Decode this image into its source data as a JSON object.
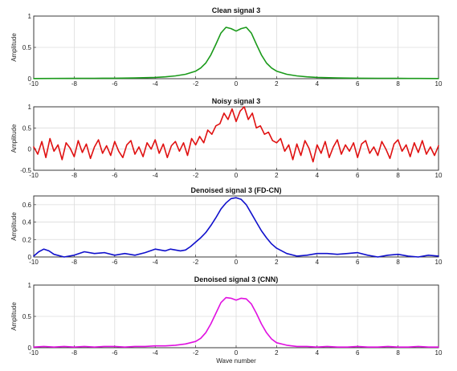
{
  "chart_data": [
    {
      "type": "line",
      "title": "Clean signal 3",
      "xlabel": "",
      "ylabel": "Amplitude",
      "xlim": [
        -10,
        10
      ],
      "ylim": [
        0,
        1
      ],
      "xticks": [
        "-10",
        "-8",
        "-6",
        "-4",
        "-2",
        "0",
        "2",
        "4",
        "6",
        "8",
        "10"
      ],
      "yticks": [
        "0",
        "0.5",
        "1"
      ],
      "grid": true,
      "color": "#1a9a1a",
      "series": [
        {
          "x": [
            -10,
            -9,
            -8,
            -7,
            -6,
            -5,
            -4,
            -3.5,
            -3,
            -2.5,
            -2,
            -1.75,
            -1.5,
            -1.25,
            -1,
            -0.75,
            -0.5,
            -0.25,
            0,
            0.25,
            0.5,
            0.75,
            1,
            1.25,
            1.5,
            1.75,
            2,
            2.5,
            3,
            3.5,
            4,
            5,
            6,
            7,
            8,
            9,
            10
          ],
          "y": [
            0.003,
            0.004,
            0.005,
            0.006,
            0.008,
            0.012,
            0.02,
            0.03,
            0.045,
            0.07,
            0.12,
            0.17,
            0.25,
            0.38,
            0.55,
            0.73,
            0.82,
            0.8,
            0.76,
            0.8,
            0.82,
            0.73,
            0.55,
            0.38,
            0.25,
            0.17,
            0.12,
            0.07,
            0.045,
            0.03,
            0.02,
            0.012,
            0.008,
            0.006,
            0.005,
            0.004,
            0.003
          ]
        }
      ]
    },
    {
      "type": "line",
      "title": "Noisy signal 3",
      "xlabel": "",
      "ylabel": "Amplitude",
      "xlim": [
        -10,
        10
      ],
      "ylim": [
        -0.5,
        1
      ],
      "xticks": [
        "-10",
        "-8",
        "-6",
        "-4",
        "-2",
        "0",
        "2",
        "4",
        "6",
        "8",
        "10"
      ],
      "yticks": [
        "-0.5",
        "0",
        "0.5",
        "1"
      ],
      "grid": true,
      "color": "#e01010",
      "series": [
        {
          "x": [
            -10,
            -9.8,
            -9.6,
            -9.4,
            -9.2,
            -9,
            -8.8,
            -8.6,
            -8.4,
            -8.2,
            -8,
            -7.8,
            -7.6,
            -7.4,
            -7.2,
            -7,
            -6.8,
            -6.6,
            -6.4,
            -6.2,
            -6,
            -5.8,
            -5.6,
            -5.4,
            -5.2,
            -5,
            -4.8,
            -4.6,
            -4.4,
            -4.2,
            -4,
            -3.8,
            -3.6,
            -3.4,
            -3.2,
            -3,
            -2.8,
            -2.6,
            -2.4,
            -2.2,
            -2,
            -1.8,
            -1.6,
            -1.4,
            -1.2,
            -1,
            -0.8,
            -0.6,
            -0.4,
            -0.2,
            0,
            0.2,
            0.4,
            0.6,
            0.8,
            1,
            1.2,
            1.4,
            1.6,
            1.8,
            2,
            2.2,
            2.4,
            2.6,
            2.8,
            3,
            3.2,
            3.4,
            3.6,
            3.8,
            4,
            4.2,
            4.4,
            4.6,
            4.8,
            5,
            5.2,
            5.4,
            5.6,
            5.8,
            6,
            6.2,
            6.4,
            6.6,
            6.8,
            7,
            7.2,
            7.4,
            7.6,
            7.8,
            8,
            8.2,
            8.4,
            8.6,
            8.8,
            9,
            9.2,
            9.4,
            9.6,
            9.8,
            10
          ],
          "y": [
            0.05,
            -0.12,
            0.18,
            -0.2,
            0.25,
            -0.05,
            0.1,
            -0.25,
            0.15,
            0.02,
            -0.18,
            0.2,
            -0.08,
            0.12,
            -0.22,
            0.05,
            0.22,
            -0.1,
            0.08,
            -0.15,
            0.18,
            -0.05,
            -0.2,
            0.1,
            0.2,
            -0.12,
            0.05,
            -0.18,
            0.15,
            0.0,
            0.22,
            -0.1,
            0.12,
            -0.2,
            0.08,
            0.18,
            -0.05,
            0.15,
            -0.15,
            0.25,
            0.1,
            0.3,
            0.15,
            0.45,
            0.35,
            0.55,
            0.6,
            0.85,
            0.7,
            0.95,
            0.65,
            0.9,
            1.0,
            0.7,
            0.85,
            0.5,
            0.55,
            0.35,
            0.4,
            0.2,
            0.15,
            0.25,
            -0.05,
            0.1,
            -0.25,
            0.12,
            -0.15,
            0.2,
            0.02,
            -0.3,
            0.1,
            -0.1,
            0.18,
            -0.2,
            0.05,
            0.22,
            -0.12,
            0.1,
            -0.05,
            0.15,
            -0.2,
            0.12,
            0.2,
            -0.1,
            0.05,
            -0.15,
            0.18,
            0.0,
            -0.22,
            0.12,
            0.22,
            -0.05,
            0.1,
            -0.18,
            0.15,
            -0.08,
            0.2,
            -0.12,
            0.05,
            -0.15,
            0.08
          ]
        }
      ]
    },
    {
      "type": "line",
      "title": "Denoised signal 3 (FD-CN)",
      "xlabel": "",
      "ylabel": "Amplitude",
      "xlim": [
        -10,
        10
      ],
      "ylim": [
        0,
        0.7
      ],
      "xticks": [
        "-10",
        "-8",
        "-6",
        "-4",
        "-2",
        "0",
        "2",
        "4",
        "6",
        "8",
        "10"
      ],
      "yticks": [
        "0",
        "0.2",
        "0.4",
        "0.6"
      ],
      "grid": true,
      "color": "#1010cc",
      "series": [
        {
          "x": [
            -10,
            -9.75,
            -9.5,
            -9.25,
            -9,
            -8.5,
            -8,
            -7.5,
            -7,
            -6.5,
            -6,
            -5.5,
            -5,
            -4.5,
            -4,
            -3.75,
            -3.5,
            -3.25,
            -3,
            -2.75,
            -2.5,
            -2.25,
            -2,
            -1.75,
            -1.5,
            -1.25,
            -1,
            -0.75,
            -0.5,
            -0.25,
            0,
            0.25,
            0.5,
            0.75,
            1,
            1.25,
            1.5,
            1.75,
            2,
            2.5,
            3,
            3.5,
            4,
            4.5,
            5,
            5.5,
            6,
            6.5,
            7,
            7.5,
            8,
            8.5,
            9,
            9.5,
            10
          ],
          "y": [
            0.01,
            0.06,
            0.09,
            0.07,
            0.03,
            -0.01,
            0.02,
            0.06,
            0.04,
            0.05,
            0.02,
            0.04,
            0.02,
            0.05,
            0.09,
            0.08,
            0.07,
            0.09,
            0.08,
            0.07,
            0.08,
            0.12,
            0.17,
            0.22,
            0.28,
            0.36,
            0.45,
            0.55,
            0.62,
            0.67,
            0.68,
            0.66,
            0.6,
            0.5,
            0.4,
            0.3,
            0.22,
            0.15,
            0.1,
            0.04,
            0.01,
            0.02,
            0.04,
            0.04,
            0.03,
            0.04,
            0.05,
            0.02,
            -0.01,
            0.02,
            0.03,
            0.01,
            0.0,
            0.02,
            0.01
          ]
        }
      ]
    },
    {
      "type": "line",
      "title": "Denoised signal 3 (CNN)",
      "xlabel": "Wave number",
      "ylabel": "Amplitude",
      "xlim": [
        -10,
        10
      ],
      "ylim": [
        0,
        1
      ],
      "xticks": [
        "-10",
        "-8",
        "-6",
        "-4",
        "-2",
        "0",
        "2",
        "4",
        "6",
        "8",
        "10"
      ],
      "yticks": [
        "0",
        "0.5",
        "1"
      ],
      "grid": true,
      "color": "#e010e0",
      "series": [
        {
          "x": [
            -10,
            -9.5,
            -9,
            -8.5,
            -8,
            -7.5,
            -7,
            -6.5,
            -6,
            -5.5,
            -5,
            -4.5,
            -4,
            -3.5,
            -3,
            -2.5,
            -2,
            -1.75,
            -1.5,
            -1.25,
            -1,
            -0.75,
            -0.5,
            -0.25,
            0,
            0.25,
            0.5,
            0.75,
            1,
            1.25,
            1.5,
            1.75,
            2,
            2.5,
            3,
            3.5,
            4,
            4.5,
            5,
            5.5,
            6,
            6.5,
            7,
            7.5,
            8,
            8.5,
            9,
            9.5,
            10
          ],
          "y": [
            0.01,
            0.02,
            0.01,
            0.02,
            0.01,
            0.02,
            0.01,
            0.02,
            0.02,
            0.01,
            0.02,
            0.02,
            0.03,
            0.03,
            0.04,
            0.06,
            0.1,
            0.15,
            0.24,
            0.38,
            0.55,
            0.72,
            0.8,
            0.79,
            0.76,
            0.79,
            0.78,
            0.7,
            0.55,
            0.38,
            0.24,
            0.14,
            0.08,
            0.04,
            0.02,
            0.02,
            0.01,
            0.02,
            0.01,
            0.01,
            0.02,
            0.01,
            0.01,
            0.02,
            0.01,
            0.01,
            0.02,
            0.01,
            0.01
          ]
        }
      ]
    }
  ]
}
